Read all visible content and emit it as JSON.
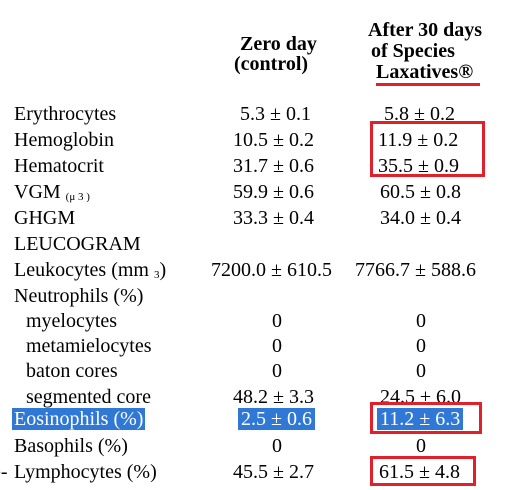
{
  "header": {
    "col1_line1": "Zero day",
    "col1_line2": "(control)",
    "col2_line1": "After 30 days",
    "col2_line2": "of Species",
    "col2_line3": "Laxatives®"
  },
  "rows": [
    {
      "label": "Erythrocytes",
      "zero": "5.3 ± 0.1",
      "after": "5.8 ± 0.2"
    },
    {
      "label": "Hemoglobin",
      "zero": "10.5 ± 0.2",
      "after": "11.9 ± 0.2"
    },
    {
      "label": "Hematocrit",
      "zero": "31.7 ± 0.6",
      "after": "35.5 ± 0.9"
    },
    {
      "label": "VGM",
      "label_unit": "(μ 3 )",
      "zero": "59.9 ± 0.6",
      "after": "60.5 ± 0.8"
    },
    {
      "label": "GHGM",
      "zero": "33.3 ± 0.4",
      "after": "34.0 ± 0.4"
    },
    {
      "label": "LEUCOGRAM"
    },
    {
      "label": "Leukocytes (mm",
      "label_unit": "3",
      "label_suffix": ")",
      "zero": "7200.0 ± 610.5",
      "after": "7766.7 ± 588.6"
    },
    {
      "label": "Neutrophils (%)"
    },
    {
      "label": "myelocytes",
      "zero": "0",
      "after": "0"
    },
    {
      "label": "metamielocytes",
      "zero": "0",
      "after": "0"
    },
    {
      "label": "baton cores",
      "zero": "0",
      "after": "0"
    },
    {
      "label": "segmented core",
      "zero": "48.2 ± 3.3",
      "after": "24.5 ± 6.0"
    },
    {
      "label": "Eosinophils (%)",
      "zero": "2.5 ± 0.6",
      "after": "11.2 ± 6.3"
    },
    {
      "label": "Basophils (%)",
      "zero": "0",
      "after": "0"
    },
    {
      "label": "Lymphocytes (%)",
      "label_prefix": "e-",
      "zero": "45.5 ± 2.7",
      "after": "61.5 ± 4.8"
    }
  ],
  "colors": {
    "highlight_bg": "#2f78d6",
    "box_border": "#e0202a"
  }
}
